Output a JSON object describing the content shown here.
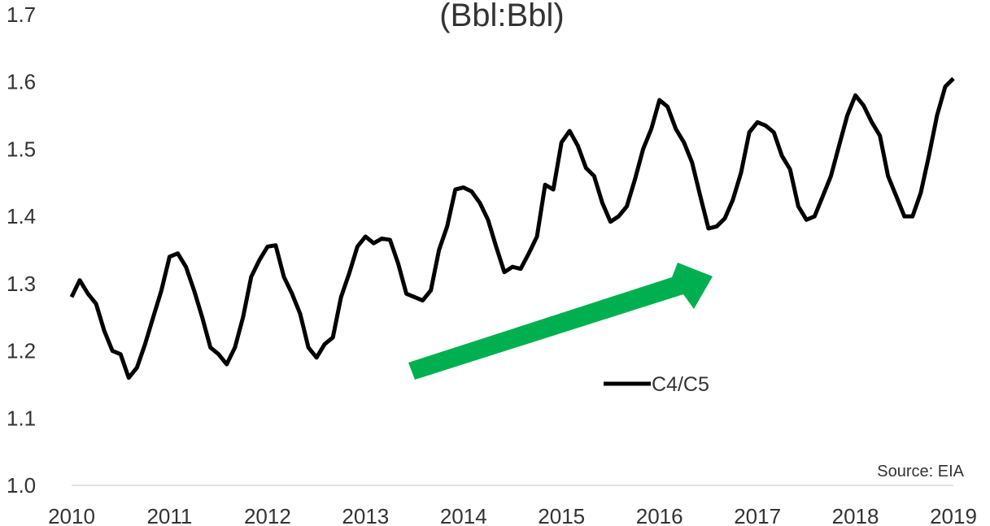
{
  "chart_data": {
    "type": "line",
    "title": "(Bbl:Bbl)",
    "x": [
      2010,
      2010.083,
      2010.167,
      2010.25,
      2010.333,
      2010.417,
      2010.5,
      2010.583,
      2010.667,
      2010.75,
      2010.833,
      2010.917,
      2011,
      2011.083,
      2011.167,
      2011.25,
      2011.333,
      2011.417,
      2011.5,
      2011.583,
      2011.667,
      2011.75,
      2011.833,
      2011.917,
      2012,
      2012.083,
      2012.167,
      2012.25,
      2012.333,
      2012.417,
      2012.5,
      2012.583,
      2012.667,
      2012.75,
      2012.833,
      2012.917,
      2013,
      2013.083,
      2013.167,
      2013.25,
      2013.333,
      2013.417,
      2013.5,
      2013.583,
      2013.667,
      2013.75,
      2013.833,
      2013.917,
      2014,
      2014.083,
      2014.167,
      2014.25,
      2014.333,
      2014.417,
      2014.5,
      2014.583,
      2014.667,
      2014.75,
      2014.833,
      2014.917,
      2015,
      2015.083,
      2015.167,
      2015.25,
      2015.333,
      2015.417,
      2015.5,
      2015.583,
      2015.667,
      2015.75,
      2015.833,
      2015.917,
      2016,
      2016.083,
      2016.167,
      2016.25,
      2016.333,
      2016.417,
      2016.5,
      2016.583,
      2016.667,
      2016.75,
      2016.833,
      2016.917,
      2017,
      2017.083,
      2017.167,
      2017.25,
      2017.333,
      2017.417,
      2017.5,
      2017.583,
      2017.667,
      2017.75,
      2017.833,
      2017.917,
      2018,
      2018.083,
      2018.167,
      2018.25,
      2018.333,
      2018.417,
      2018.5,
      2018.583,
      2018.667,
      2018.75,
      2018.833,
      2018.917,
      2019
    ],
    "series": [
      {
        "name": "C4/C5",
        "color": "#000000",
        "values": [
          1.28,
          1.305,
          1.285,
          1.27,
          1.23,
          1.2,
          1.195,
          1.16,
          1.175,
          1.21,
          1.25,
          1.29,
          1.34,
          1.345,
          1.325,
          1.29,
          1.25,
          1.205,
          1.195,
          1.18,
          1.205,
          1.25,
          1.31,
          1.335,
          1.355,
          1.357,
          1.31,
          1.285,
          1.255,
          1.205,
          1.19,
          1.21,
          1.22,
          1.28,
          1.315,
          1.355,
          1.37,
          1.36,
          1.367,
          1.365,
          1.33,
          1.285,
          1.28,
          1.275,
          1.29,
          1.35,
          1.385,
          1.44,
          1.443,
          1.437,
          1.42,
          1.395,
          1.355,
          1.317,
          1.325,
          1.322,
          1.345,
          1.37,
          1.447,
          1.44,
          1.51,
          1.527,
          1.505,
          1.472,
          1.46,
          1.42,
          1.392,
          1.4,
          1.415,
          1.455,
          1.5,
          1.53,
          1.573,
          1.563,
          1.53,
          1.51,
          1.48,
          1.43,
          1.382,
          1.385,
          1.397,
          1.425,
          1.465,
          1.525,
          1.54,
          1.535,
          1.525,
          1.49,
          1.47,
          1.415,
          1.395,
          1.4,
          1.43,
          1.46,
          1.505,
          1.55,
          1.58,
          1.565,
          1.54,
          1.52,
          1.46,
          1.43,
          1.4,
          1.4,
          1.435,
          1.49,
          1.55,
          1.593,
          1.605
        ]
      }
    ],
    "xlim": [
      2010,
      2019
    ],
    "xticks": [
      2010,
      2011,
      2012,
      2013,
      2014,
      2015,
      2016,
      2017,
      2018,
      2019
    ],
    "ylim": [
      1,
      1.7
    ],
    "yticks": [
      {
        "value": 1,
        "label": "1.0"
      },
      1.1,
      1.2,
      1.3,
      1.4,
      1.5,
      1.6,
      1.7
    ],
    "grid": false,
    "annotations": [
      "Source: EIA"
    ]
  }
}
